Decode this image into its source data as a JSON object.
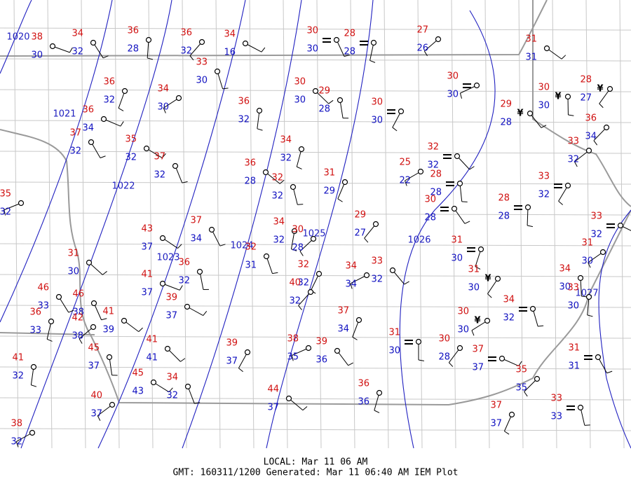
{
  "isobars": [
    {
      "label": "1020"
    },
    {
      "label": "1021"
    },
    {
      "label": "1022"
    },
    {
      "label": "1023"
    },
    {
      "label": "1024"
    },
    {
      "label": "1025"
    },
    {
      "label": "1026"
    },
    {
      "label": "1027"
    }
  ],
  "stations": [
    {
      "temp": 38,
      "dew": 30
    },
    {
      "temp": 34,
      "dew": 32
    },
    {
      "temp": 36,
      "dew": 28
    },
    {
      "temp": 36,
      "dew": 32
    },
    {
      "temp": 34,
      "dew": 16
    },
    {
      "temp": 30,
      "dew": 30
    },
    {
      "temp": 28,
      "dew": 28
    },
    {
      "temp": 27,
      "dew": 26
    },
    {
      "temp": 31,
      "dew": 31
    },
    {
      "temp": 33,
      "dew": 30
    },
    {
      "temp": 36,
      "dew": 32
    },
    {
      "temp": 34,
      "dew": 30
    },
    {
      "temp": 30,
      "dew": 30
    },
    {
      "temp": 29,
      "dew": 28
    },
    {
      "temp": 30,
      "dew": 30
    },
    {
      "temp": 30,
      "dew": 30
    },
    {
      "temp": 29,
      "dew": 28
    },
    {
      "temp": 30,
      "dew": 30
    },
    {
      "temp": 28,
      "dew": 27
    },
    {
      "temp": 36,
      "dew": 34
    },
    {
      "temp": 37,
      "dew": 32
    },
    {
      "temp": 36,
      "dew": 32
    },
    {
      "temp": 36,
      "dew": 34
    },
    {
      "temp": 35,
      "dew": 32
    },
    {
      "temp": 37,
      "dew": 32
    },
    {
      "temp": 34,
      "dew": 32
    },
    {
      "temp": 33,
      "dew": 32
    },
    {
      "temp": 36,
      "dew": 28
    },
    {
      "temp": 32,
      "dew": 32
    },
    {
      "temp": 31,
      "dew": 29
    },
    {
      "temp": 25,
      "dew": 22
    },
    {
      "temp": 32,
      "dew": 32
    },
    {
      "temp": 28,
      "dew": 28
    },
    {
      "temp": 33,
      "dew": 32
    },
    {
      "temp": 35,
      "dew": 32
    },
    {
      "temp": 30,
      "dew": 28
    },
    {
      "temp": 28,
      "dew": 28
    },
    {
      "temp": 29,
      "dew": 27
    },
    {
      "temp": 33,
      "dew": 32
    },
    {
      "temp": 37,
      "dew": 34
    },
    {
      "temp": 34,
      "dew": 32
    },
    {
      "temp": 30,
      "dew": 28
    },
    {
      "temp": 43,
      "dew": 37
    },
    {
      "temp": 32,
      "dew": 31
    },
    {
      "temp": 31,
      "dew": 30
    },
    {
      "temp": 31,
      "dew": 30
    },
    {
      "temp": 31,
      "dew": 30
    },
    {
      "temp": 36,
      "dew": 32
    },
    {
      "temp": 32,
      "dew": 32
    },
    {
      "temp": 34,
      "dew": 34
    },
    {
      "temp": 33,
      "dew": 32
    },
    {
      "temp": 34,
      "dew": 30
    },
    {
      "temp": 31,
      "dew": 30
    },
    {
      "temp": 41,
      "dew": 37
    },
    {
      "temp": 46,
      "dew": 33
    },
    {
      "temp": 33,
      "dew": 30
    },
    {
      "temp": 40,
      "dew": 32
    },
    {
      "temp": 39,
      "dew": 37
    },
    {
      "temp": 46,
      "dew": 38
    },
    {
      "temp": 36,
      "dew": 33
    },
    {
      "temp": 42,
      "dew": 38
    },
    {
      "temp": 41,
      "dew": 39
    },
    {
      "temp": 34,
      "dew": 32
    },
    {
      "temp": 37,
      "dew": 34
    },
    {
      "temp": 30,
      "dew": 30
    },
    {
      "temp": 41,
      "dew": 41
    },
    {
      "temp": 45,
      "dew": 37
    },
    {
      "temp": 39,
      "dew": 37
    },
    {
      "temp": 38,
      "dew": 35
    },
    {
      "temp": 39,
      "dew": 36
    },
    {
      "temp": 31,
      "dew": 30
    },
    {
      "temp": 30,
      "dew": 28
    },
    {
      "temp": 37,
      "dew": 37
    },
    {
      "temp": 31,
      "dew": 31
    },
    {
      "temp": 41,
      "dew": 32
    },
    {
      "temp": 35,
      "dew": 35
    },
    {
      "temp": 45,
      "dew": 43
    },
    {
      "temp": 34,
      "dew": 32
    },
    {
      "temp": 36,
      "dew": 36
    },
    {
      "temp": 40,
      "dew": 37
    },
    {
      "temp": 44,
      "dew": 37
    },
    {
      "temp": 33,
      "dew": 33
    },
    {
      "temp": 37,
      "dew": 37
    },
    {
      "temp": 38,
      "dew": 32
    }
  ],
  "footer": {
    "local": "LOCAL: Mar 11 06 AM",
    "gmt": "GMT: 160311/1200 Generated: Mar 11 06:40 AM IEM Plot"
  }
}
